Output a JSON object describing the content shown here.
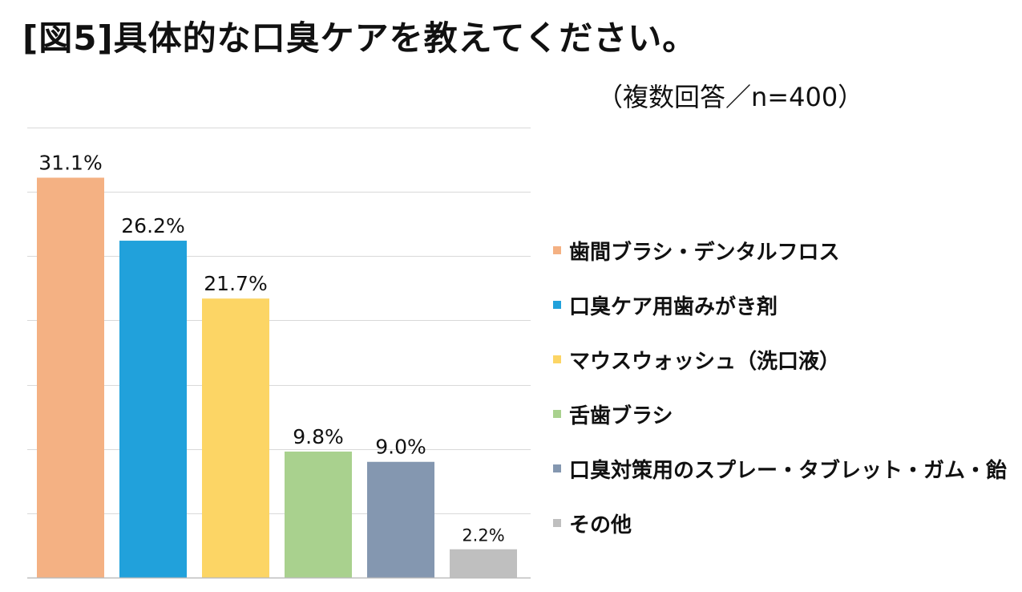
{
  "title": "[図5]具体的な口臭ケアを教えてください。",
  "subtitle": "（複数回答／n=400）",
  "chart_data": {
    "type": "bar",
    "categories": [
      "歯間ブラシ・デンタルフロス",
      "口臭ケア用歯みがき剤",
      "マウスウォッシュ（洗口液）",
      "舌歯ブラシ",
      "口臭対策用のスプレー・タブレット・ガム・飴",
      "その他"
    ],
    "values": [
      31.1,
      26.2,
      21.7,
      9.8,
      9.0,
      2.2
    ],
    "value_labels": [
      "31.1%",
      "26.2%",
      "21.7%",
      "9.8%",
      "9.0%",
      "2.2%"
    ],
    "colors": [
      "#F4B183",
      "#21A1DB",
      "#FCD565",
      "#A9D18E",
      "#8497B0",
      "#BFBFBF"
    ],
    "ylim": [
      0,
      35
    ],
    "grid": true,
    "legend_position": "right",
    "unit": "%"
  }
}
